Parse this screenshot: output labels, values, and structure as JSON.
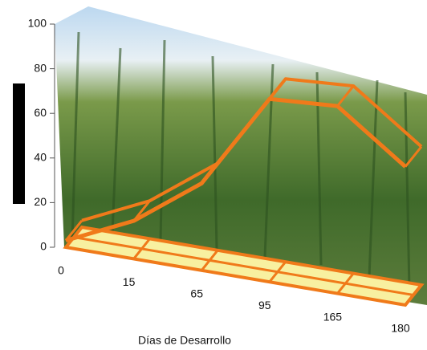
{
  "chart_data": {
    "type": "area",
    "x_label": "Días de Desarrollo",
    "categories": [
      "0",
      "15",
      "65",
      "95",
      "165",
      "180"
    ],
    "values": [
      3,
      17,
      39,
      82,
      84,
      62
    ],
    "color": "#f07a1a",
    "ylim": [
      0,
      100
    ],
    "yticks": [
      0,
      20,
      40,
      60,
      80,
      100
    ]
  }
}
